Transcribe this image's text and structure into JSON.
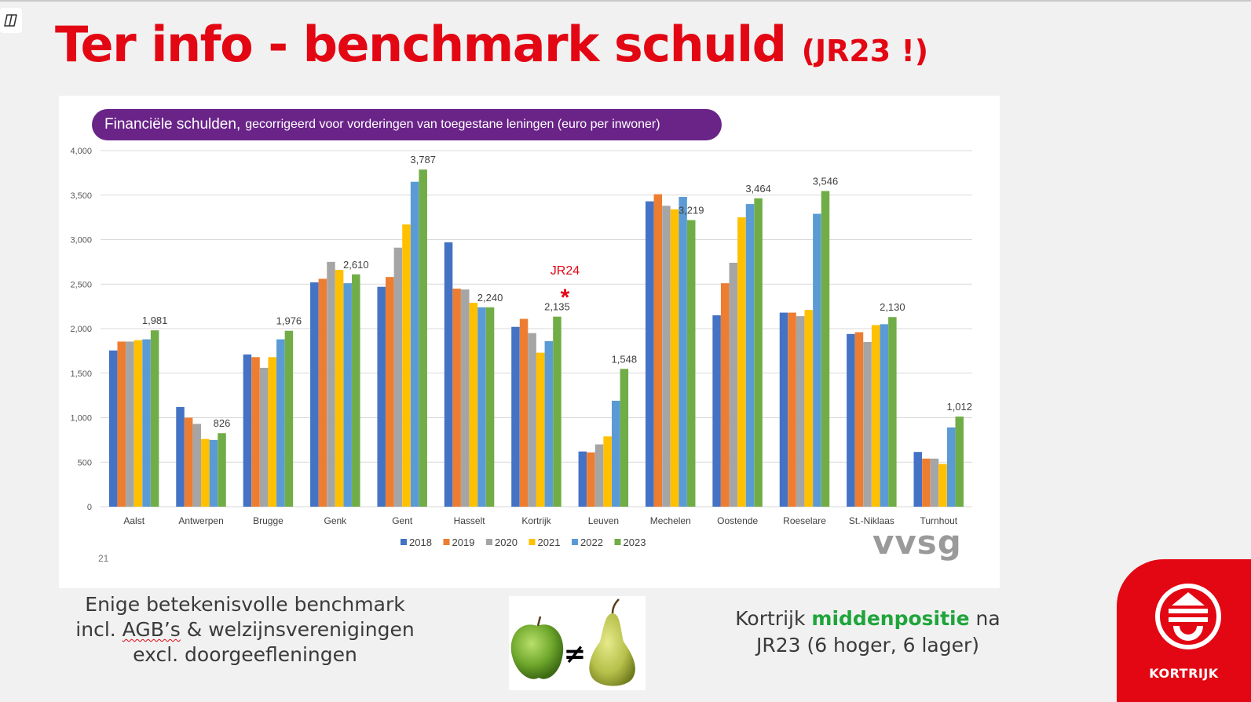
{
  "slide": {
    "title": "Ter info - benchmark schuld",
    "title_suffix": "(JR23 !)",
    "page_number": "21",
    "source_logo": "vvsg",
    "chart_banner_bold": "Financiële schulden,",
    "chart_banner_rest": "gecorrigeerd voor vorderingen van toegestane leningen (euro per inwoner)",
    "left_note": [
      "Enige betekenisvolle benchmark",
      "incl. ",
      "AGB’s",
      " & welzijnsverenigingen",
      "excl. doorgeefleningen"
    ],
    "comparison_symbol": "≠",
    "right_note": {
      "prefix": "Kortrijk ",
      "highlight": "middenpositie",
      "suffix": " na",
      "line2": "JR23 (6 hoger, 6 lager)"
    },
    "logo_text": "KORTRIJK",
    "annotation": {
      "label": "JR24",
      "marker": "*",
      "category": "Kortrijk"
    }
  },
  "chart_data": {
    "type": "bar",
    "categories": [
      "Aalst",
      "Antwerpen",
      "Brugge",
      "Genk",
      "Gent",
      "Hasselt",
      "Kortrijk",
      "Leuven",
      "Mechelen",
      "Oostende",
      "Roeselare",
      "St.-Niklaas",
      "Turnhout"
    ],
    "series": [
      {
        "name": "2018",
        "values": [
          1755,
          1120,
          1710,
          2520,
          2470,
          2970,
          2020,
          620,
          3430,
          2150,
          2180,
          1940,
          615
        ]
      },
      {
        "name": "2019",
        "values": [
          1855,
          1000,
          1680,
          2560,
          2580,
          2450,
          2110,
          610,
          3510,
          2510,
          2180,
          1960,
          540
        ]
      },
      {
        "name": "2020",
        "values": [
          1855,
          930,
          1560,
          2750,
          2910,
          2440,
          1950,
          700,
          3380,
          2740,
          2140,
          1850,
          540
        ]
      },
      {
        "name": "2021",
        "values": [
          1870,
          760,
          1680,
          2660,
          3170,
          2290,
          1730,
          790,
          3340,
          3250,
          2210,
          2040,
          480
        ]
      },
      {
        "name": "2022",
        "values": [
          1880,
          750,
          1880,
          2510,
          3650,
          2240,
          1860,
          1190,
          3480,
          3400,
          3290,
          2050,
          890
        ]
      },
      {
        "name": "2023",
        "values": [
          1981,
          826,
          1976,
          2610,
          3787,
          2240,
          2135,
          1548,
          3219,
          3464,
          3546,
          2130,
          1012
        ]
      }
    ],
    "last_labels": [
      "1,981",
      "826",
      "1,976",
      "2,610",
      "3,787",
      "2,240",
      "2,135",
      "1,548",
      "3,219",
      "3,464",
      "3,546",
      "2,130",
      "1,012"
    ],
    "yticks": [
      0,
      500,
      1000,
      1500,
      2000,
      2500,
      3000,
      3500,
      4000
    ],
    "ytick_labels": [
      "0",
      "500",
      "1,000",
      "1,500",
      "2,000",
      "2,500",
      "3,000",
      "3,500",
      "4,000"
    ],
    "ylim": [
      0,
      4000
    ],
    "grid": true,
    "legend_position": "bottom",
    "colors": [
      "#4472c4",
      "#ed7d31",
      "#a5a5a5",
      "#ffc000",
      "#5b9bd5",
      "#70ad47"
    ],
    "accent_color": "#e30613"
  }
}
